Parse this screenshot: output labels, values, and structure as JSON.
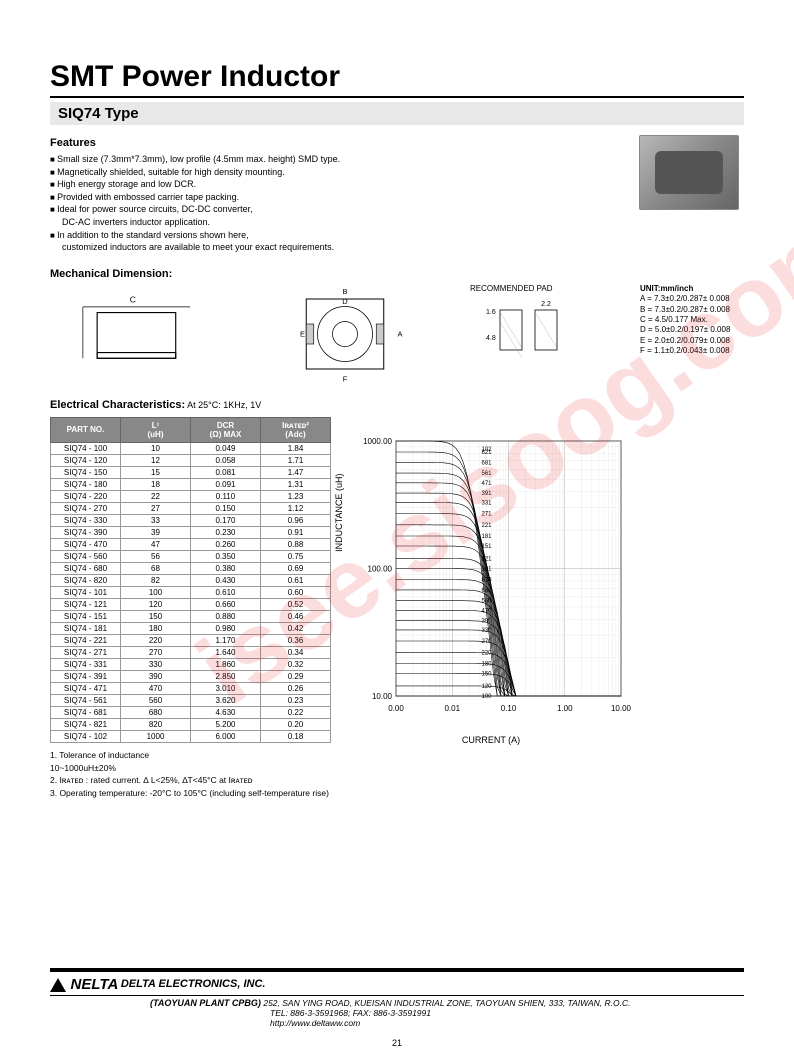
{
  "watermark": "isee.sisoog.com",
  "title": "SMT Power Inductor",
  "subtitle": "SIQ74 Type",
  "features_header": "Features",
  "features": [
    {
      "t": "Small size (7.3mm*7.3mm), low profile (4.5mm max. height) SMD type.",
      "b": true
    },
    {
      "t": "Magnetically shielded, suitable for high density mounting.",
      "b": true
    },
    {
      "t": "High energy storage and low DCR.",
      "b": true
    },
    {
      "t": "Provided with embossed carrier tape packing.",
      "b": true
    },
    {
      "t": "Ideal for power source circuits, DC-DC converter,",
      "b": true
    },
    {
      "t": "DC-AC inverters inductor application.",
      "b": false
    },
    {
      "t": "In addition to the standard versions shown here,",
      "b": true
    },
    {
      "t": "customized inductors are available to meet your exact requirements.",
      "b": false
    }
  ],
  "mech_header": "Mechanical Dimension:",
  "pad_header": "RECOMMENDED PAD",
  "pad_dims": {
    "w": "2.2",
    "gap": "1.6",
    "h": "4.8"
  },
  "unit_header": "UNIT:mm/inch",
  "units": [
    "A = 7.3±0.2/0.287± 0.008",
    "B = 7.3±0.2/0.287± 0.008",
    "C = 4.5/0.177 Max.",
    "D = 5.0±0.2/0.197± 0.008",
    "E = 2.0±0.2/0.079± 0.008",
    "F = 1.1±0.2/0.043± 0.008"
  ],
  "elec_header": "Electrical Characteristics:",
  "elec_cond": "At 25°C: 1KHz, 1V",
  "table_headers": [
    "PART NO.",
    "L¹\n(uH)",
    "DCR\n(Ω) MAX",
    "Iʀᴀᴛᴇᴅ²\n(Adc)"
  ],
  "rows": [
    [
      "SIQ74 - 100",
      "10",
      "0.049",
      "1.84"
    ],
    [
      "SIQ74 - 120",
      "12",
      "0.058",
      "1.71"
    ],
    [
      "SIQ74 - 150",
      "15",
      "0.081",
      "1.47"
    ],
    [
      "SIQ74 - 180",
      "18",
      "0.091",
      "1.31"
    ],
    [
      "SIQ74 - 220",
      "22",
      "0.110",
      "1.23"
    ],
    [
      "SIQ74 - 270",
      "27",
      "0.150",
      "1.12"
    ],
    [
      "SIQ74 - 330",
      "33",
      "0.170",
      "0.96"
    ],
    [
      "SIQ74 - 390",
      "39",
      "0.230",
      "0.91"
    ],
    [
      "SIQ74 - 470",
      "47",
      "0.260",
      "0.88"
    ],
    [
      "SIQ74 - 560",
      "56",
      "0.350",
      "0.75"
    ],
    [
      "SIQ74 - 680",
      "68",
      "0.380",
      "0.69"
    ],
    [
      "SIQ74 - 820",
      "82",
      "0.430",
      "0.61"
    ],
    [
      "SIQ74 - 101",
      "100",
      "0.610",
      "0.60"
    ],
    [
      "SIQ74 - 121",
      "120",
      "0.660",
      "0.52"
    ],
    [
      "SIQ74 - 151",
      "150",
      "0.880",
      "0.46"
    ],
    [
      "SIQ74 - 181",
      "180",
      "0.980",
      "0.42"
    ],
    [
      "SIQ74 - 221",
      "220",
      "1.170",
      "0.36"
    ],
    [
      "SIQ74 - 271",
      "270",
      "1.640",
      "0.34"
    ],
    [
      "SIQ74 - 331",
      "330",
      "1.860",
      "0.32"
    ],
    [
      "SIQ74 - 391",
      "390",
      "2.850",
      "0.29"
    ],
    [
      "SIQ74 - 471",
      "470",
      "3.010",
      "0.26"
    ],
    [
      "SIQ74 - 561",
      "560",
      "3.620",
      "0.23"
    ],
    [
      "SIQ74 - 681",
      "680",
      "4.630",
      "0.22"
    ],
    [
      "SIQ74 - 821",
      "820",
      "5.200",
      "0.20"
    ],
    [
      "SIQ74 - 102",
      "1000",
      "6.000",
      "0.18"
    ]
  ],
  "chart": {
    "ylabel": "INDUCTANCE (uH)",
    "xlabel": "CURRENT (A)",
    "xticks": [
      "0.00",
      "0.01",
      "0.10",
      "1.00",
      "10.00"
    ],
    "yticks": [
      "10.00",
      "100.00",
      "1000.00"
    ],
    "curve_labels": [
      "102",
      "821",
      "681",
      "561",
      "471",
      "391",
      "331",
      "271",
      "221",
      "181",
      "151",
      "121",
      "101",
      "820",
      "680",
      "560",
      "470",
      "390",
      "330",
      "270",
      "220",
      "180",
      "150",
      "120",
      "100"
    ]
  },
  "notes": [
    "1. Tolerance of inductance",
    "    10~1000uH±20%",
    "2. Iʀᴀᴛᴇᴅ : rated current. ∆ L<25%, ∆T<45°C  at Iʀᴀᴛᴇᴅ",
    "3. Operating temperature: -20°C to 105°C  (including self-temperature rise)"
  ],
  "footer": {
    "logo": "NELTA",
    "company": "DELTA ELECTRONICS, INC.",
    "plant": "(TAOYUAN PLANT CPBG)",
    "addr": "252, SAN YING ROAD, KUEISAN INDUSTRIAL ZONE, TAOYUAN SHIEN, 333, TAIWAN, R.O.C.",
    "tel": "TEL: 886-3-3591968; FAX: 886-3-3591991",
    "url": "http://www.deltaww.com"
  },
  "pagenum": "21",
  "colors": {
    "header_bg": "#888888",
    "header_fg": "#ffffff",
    "wm": "rgba(237,28,36,0.15)"
  }
}
